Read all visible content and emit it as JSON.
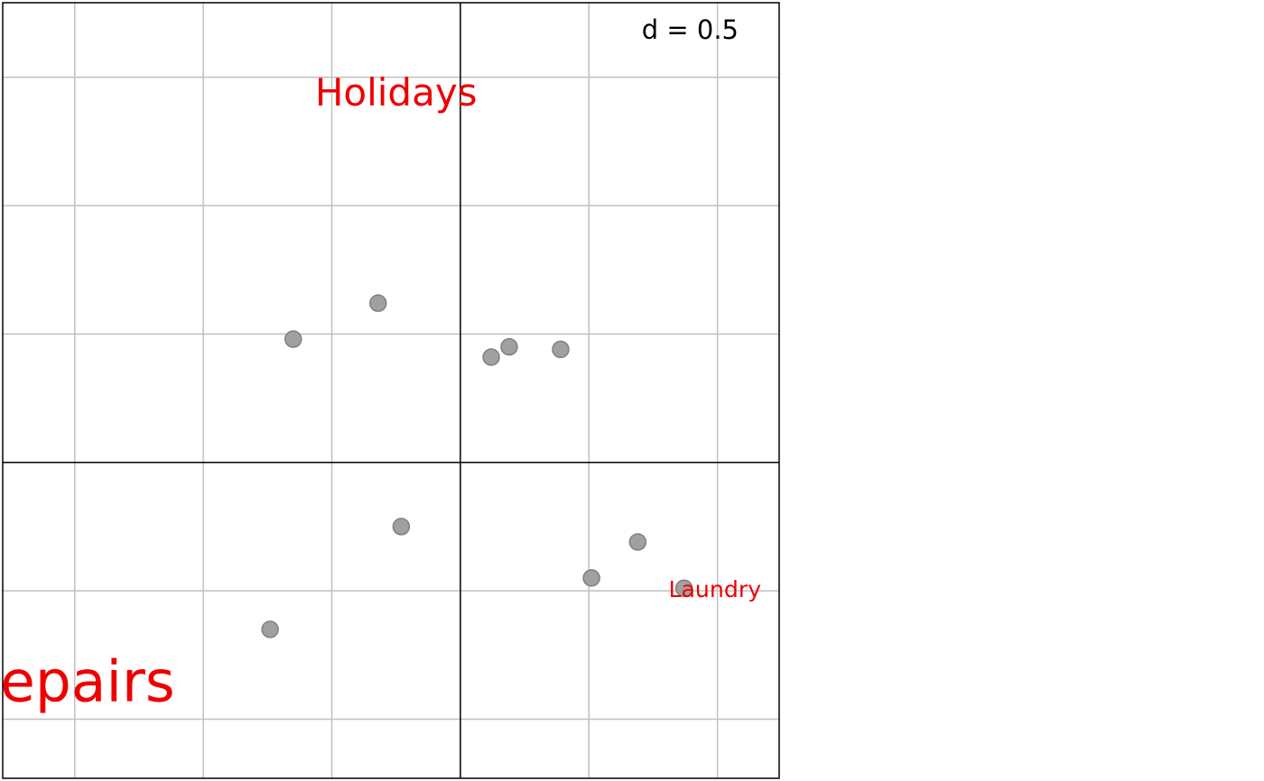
{
  "chart_data": {
    "type": "scatter",
    "scale_label": "d = 0.5",
    "grid": true,
    "grid_step": 0.5,
    "xlim": [
      -1.78,
      1.24
    ],
    "ylim": [
      -1.23,
      1.79
    ],
    "colors": {
      "label": "#ee0000",
      "point_fill": "#a0a0a0",
      "point_stroke": "#808080",
      "grid": "#c0c0c0",
      "axis": "#000000"
    },
    "points": [
      {
        "x": -0.32,
        "y": 0.62
      },
      {
        "x": -0.65,
        "y": 0.48
      },
      {
        "x": 0.12,
        "y": 0.41
      },
      {
        "x": 0.19,
        "y": 0.45
      },
      {
        "x": 0.39,
        "y": 0.44
      },
      {
        "x": -0.23,
        "y": -0.25
      },
      {
        "x": -0.74,
        "y": -0.65
      },
      {
        "x": 0.51,
        "y": -0.45
      },
      {
        "x": 0.69,
        "y": -0.31
      },
      {
        "x": 0.87,
        "y": -0.49
      }
    ],
    "labels": [
      {
        "text": "Holidays",
        "x": -0.25,
        "y": 1.43,
        "size": 1.0
      },
      {
        "text": "Laundry",
        "x": 0.99,
        "y": -0.5,
        "size": 0.6
      },
      {
        "text": "epairs",
        "x": -1.45,
        "y": -0.87,
        "size": 1.5
      }
    ]
  }
}
